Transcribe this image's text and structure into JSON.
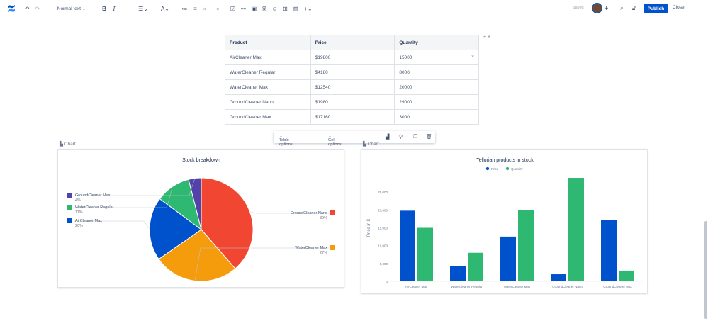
{
  "toolbar": {
    "text_style": "Normal text",
    "saved": "Saved",
    "publish": "Publish",
    "close": "Close"
  },
  "table": {
    "headers": [
      "Product",
      "Price",
      "Quantity"
    ],
    "rows": [
      [
        "AirCleaner Max",
        "$19800",
        "15000"
      ],
      [
        "WaterCleaner Regular",
        "$4180",
        "8000"
      ],
      [
        "WaterCleaner Max",
        "$12540",
        "20000"
      ],
      [
        "GroundCleaner Nano",
        "$1980",
        "29000"
      ],
      [
        "GroundCleaner Max",
        "$17160",
        "3000"
      ]
    ]
  },
  "table_options": {
    "table": "Table options",
    "cell": "Cell options"
  },
  "pie_card": {
    "label": "Chart"
  },
  "bar_card": {
    "label": "Chart"
  },
  "colors": {
    "blue": "#0052cc",
    "green": "#2eb872",
    "orange": "#f59c0c",
    "red": "#f14632",
    "purple": "#5243aa",
    "accent": "#0052cc"
  },
  "chart_data": [
    {
      "type": "pie",
      "title": "Stock breakdown",
      "slices": [
        {
          "name": "GroundCleaner Nano",
          "value": 39,
          "label": "39%",
          "color": "#f14632"
        },
        {
          "name": "WaterCleaner Max",
          "value": 27,
          "label": "27%",
          "color": "#f59c0c"
        },
        {
          "name": "AirCleaner Max",
          "value": 20,
          "label": "20%",
          "color": "#0052cc"
        },
        {
          "name": "WaterCleaner Regular",
          "value": 11,
          "label": "11%",
          "color": "#2eb872"
        },
        {
          "name": "GroundCleaner Max",
          "value": 4,
          "label": "4%",
          "color": "#5243aa"
        }
      ]
    },
    {
      "type": "bar",
      "title": "Tellurian products in stock",
      "categories": [
        "AirCleaner Max",
        "WaterCleaner Regular",
        "WaterCleaner Max",
        "GroundCleaner Nano",
        "GroundCleaner Max"
      ],
      "series": [
        {
          "name": "Price",
          "values": [
            19800,
            4180,
            12540,
            1980,
            17160
          ],
          "color": "#0052cc"
        },
        {
          "name": "Quantity",
          "values": [
            15000,
            8000,
            20000,
            29000,
            3000
          ],
          "color": "#2eb872"
        }
      ],
      "ylabel": "Price in $",
      "yticks": [
        "0",
        "5,000",
        "10,000",
        "15,000",
        "20,000",
        "25,000"
      ],
      "ylim": [
        0,
        30000
      ],
      "legend": "top"
    }
  ]
}
